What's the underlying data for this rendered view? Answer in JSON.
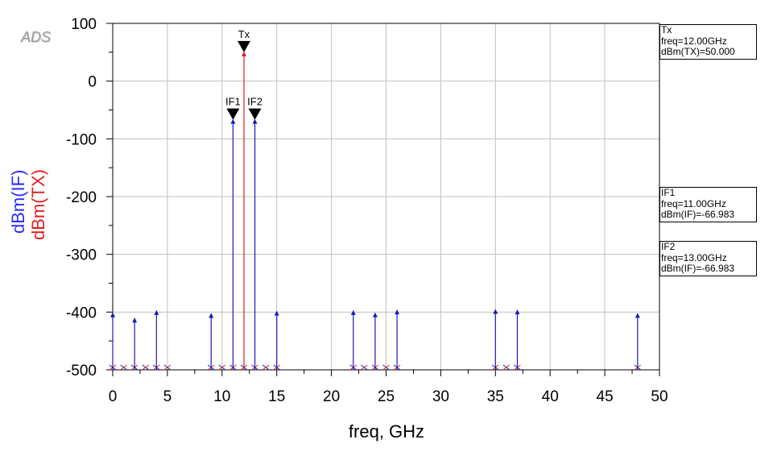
{
  "logo": "ADS",
  "chart_data": {
    "type": "spectrum",
    "xlabel": "freq, GHz",
    "ylabels": [
      "dBm(IF)",
      "dBm(TX)"
    ],
    "xlim": [
      0,
      50
    ],
    "ylim": [
      -500,
      100
    ],
    "xticks": [
      0,
      5,
      10,
      15,
      20,
      25,
      30,
      35,
      40,
      45,
      50
    ],
    "yticks": [
      100,
      0,
      -100,
      -200,
      -300,
      -400,
      -500
    ],
    "colors": {
      "IF": "#1a1ab4",
      "TX": "#d42020"
    },
    "series": [
      {
        "name": "dBm(IF)",
        "x": [
          0,
          2,
          4,
          9,
          11,
          13,
          15,
          22,
          24,
          26,
          35,
          37,
          48
        ],
        "y": [
          -402,
          -411,
          -398,
          -403,
          -66.983,
          -66.983,
          -399,
          -398,
          -402,
          -397,
          -396,
          -397,
          -403
        ]
      },
      {
        "name": "dBm(TX)",
        "x": [
          12
        ],
        "y": [
          50.0
        ]
      }
    ],
    "baseline_markers_x": [
      0,
      1,
      2,
      3,
      4,
      5,
      9,
      10,
      11,
      12,
      13,
      14,
      15,
      22,
      23,
      24,
      25,
      26,
      35,
      36,
      37,
      48
    ],
    "markers": [
      {
        "label": "Tx",
        "x": 12,
        "y": 50.0,
        "lines": [
          "Tx",
          "freq=12.00GHz",
          "dBm(TX)=50.000"
        ]
      },
      {
        "label": "IF1",
        "x": 11,
        "y": -66.983,
        "lines": [
          "IF1",
          "freq=11.00GHz",
          "dBm(IF)=-66.983"
        ]
      },
      {
        "label": "IF2",
        "x": 13,
        "y": -66.983,
        "lines": [
          "IF2",
          "freq=13.00GHz",
          "dBm(IF)=-66.983"
        ]
      }
    ]
  }
}
